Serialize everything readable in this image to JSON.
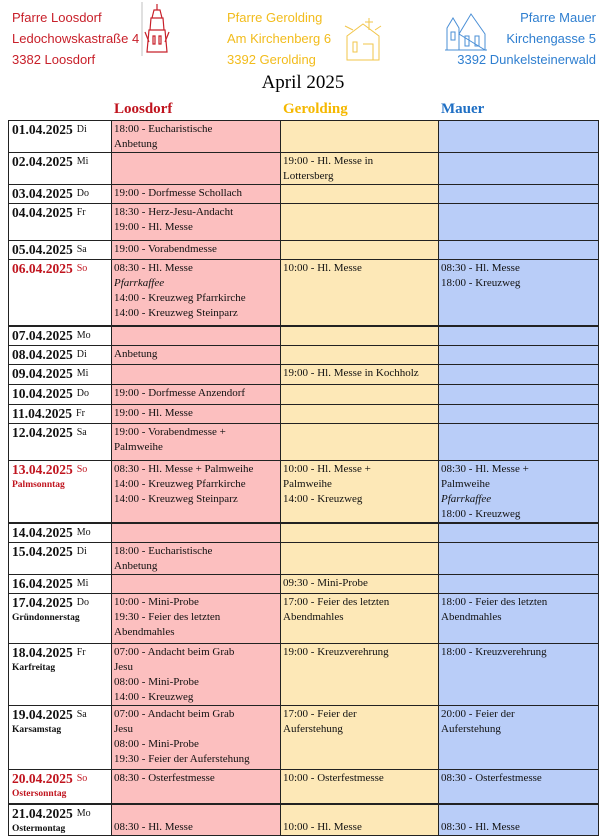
{
  "header": {
    "loosdorf": {
      "lines": [
        "Pfarre Loosdorf",
        "Ledochowskastraße 4",
        "3382 Loosdorf"
      ],
      "color": "#c8202a"
    },
    "gerolding": {
      "lines": [
        "Pfarre Gerolding",
        "Am Kirchenberg 6",
        "3392 Gerolding"
      ],
      "color": "#f2bc1c"
    },
    "mauer": {
      "lines": [
        "Pfarre Mauer",
        "Kirchengasse 5",
        "3392 Dunkelsteinerwald"
      ],
      "color": "#2f7fd0"
    }
  },
  "title": "April 2025",
  "columns": {
    "loosdorf": "Loosdorf",
    "gerolding": "Gerolding",
    "mauer": "Mauer"
  },
  "colors": {
    "loosdorf_bg": "#fcbfbf",
    "gerolding_bg": "#fde8b7",
    "mauer_bg": "#b9cdf8",
    "sunday_red": "#c0141e"
  },
  "rows": [
    {
      "date": "01.04.2025",
      "day": "Di",
      "loosdorf": [
        "18:00 - Eucharistische",
        "Anbetung"
      ],
      "gerolding": [],
      "mauer": []
    },
    {
      "date": "02.04.2025",
      "day": "Mi",
      "loosdorf": [],
      "gerolding": [
        "19:00 - Hl. Messe in",
        "Lottersberg"
      ],
      "mauer": []
    },
    {
      "date": "03.04.2025",
      "day": "Do",
      "loosdorf": [
        "19:00 - Dorfmesse Schollach"
      ],
      "gerolding": [],
      "mauer": []
    },
    {
      "date": "04.04.2025",
      "day": "Fr",
      "loosdorf": [
        "18:30 - Herz-Jesu-Andacht",
        "19:00 - Hl. Messe"
      ],
      "gerolding": [],
      "mauer": []
    },
    {
      "date": "05.04.2025",
      "day": "Sa",
      "loosdorf": [
        "19:00 - Vorabendmesse"
      ],
      "gerolding": [],
      "mauer": []
    },
    {
      "date": "06.04.2025",
      "day": "So",
      "sunday": true,
      "loosdorf": [
        "08:30 - Hl. Messe",
        {
          "text": "Pfarrkaffee",
          "italic": true
        },
        "14:00 - Kreuzweg Pfarrkirche",
        "14:00 - Kreuzweg  Steinparz"
      ],
      "gerolding": [
        "10:00 - Hl. Messe"
      ],
      "mauer": [
        "08:30 - Hl. Messe",
        "18:00 - Kreuzweg"
      ]
    },
    {
      "date": "07.04.2025",
      "day": "Mo",
      "loosdorf": [],
      "gerolding": [],
      "mauer": []
    },
    {
      "date": "08.04.2025",
      "day": "Di",
      "loosdorf": [
        "Anbetung"
      ],
      "gerolding": [],
      "mauer": []
    },
    {
      "date": "09.04.2025",
      "day": "Mi",
      "loosdorf": [],
      "gerolding": [
        "19:00 - Hl. Messe in Kochholz"
      ],
      "mauer": []
    },
    {
      "date": "10.04.2025",
      "day": "Do",
      "loosdorf": [
        "19:00 - Dorfmesse Anzendorf"
      ],
      "gerolding": [],
      "mauer": []
    },
    {
      "date": "11.04.2025",
      "day": "Fr",
      "loosdorf": [
        "19:00 - Hl. Messe"
      ],
      "gerolding": [],
      "mauer": []
    },
    {
      "date": "12.04.2025",
      "day": "Sa",
      "loosdorf": [
        "19:00 - Vorabendmesse +",
        "Palmweihe"
      ],
      "gerolding": [],
      "mauer": []
    },
    {
      "date": "13.04.2025",
      "day": "So",
      "sunday": true,
      "label": "Palmsonntag",
      "loosdorf": [
        "08:30 - Hl. Messe + Palmweihe",
        "14:00 - Kreuzweg Pfarrkirche",
        "14:00 - Kreuzweg  Steinparz"
      ],
      "gerolding": [
        "10:00 - Hl. Messe +",
        "Palmweihe",
        "14:00 - Kreuzweg"
      ],
      "mauer": [
        "08:30 - Hl. Messe +",
        "Palmweihe",
        {
          "text": "Pfarrkaffee",
          "italic": true
        },
        "18:00 - Kreuzweg"
      ]
    },
    {
      "date": "14.04.2025",
      "day": "Mo",
      "loosdorf": [],
      "gerolding": [],
      "mauer": []
    },
    {
      "date": "15.04.2025",
      "day": "Di",
      "loosdorf": [
        "18:00 - Eucharistische",
        "Anbetung"
      ],
      "gerolding": [],
      "mauer": []
    },
    {
      "date": "16.04.2025",
      "day": "Mi",
      "loosdorf": [],
      "gerolding": [
        "09:30 - Mini-Probe"
      ],
      "mauer": []
    },
    {
      "date": "17.04.2025",
      "day": "Do",
      "label": "Gründonnerstag",
      "loosdorf": [
        "10:00 - Mini-Probe",
        "19:30 - Feier des letzten",
        "Abendmahles"
      ],
      "gerolding": [
        "17:00 - Feier des letzten",
        "Abendmahles"
      ],
      "mauer": [
        "18:00 - Feier des letzten",
        "Abendmahles"
      ]
    },
    {
      "date": "18.04.2025",
      "day": "Fr",
      "label": "Karfreitag",
      "loosdorf": [
        "07:00 - Andacht beim Grab",
        "Jesu",
        "08:00 - Mini-Probe",
        "14:00 - Kreuzweg"
      ],
      "gerolding": [
        "19:00 - Kreuzverehrung"
      ],
      "mauer": [
        "18:00 - Kreuzverehrung"
      ]
    },
    {
      "date": "19.04.2025",
      "day": "Sa",
      "label": "Karsamstag",
      "loosdorf": [
        "07:00 - Andacht beim Grab",
        "Jesu",
        "08:00 - Mini-Probe",
        "19:30 - Feier der Auferstehung"
      ],
      "gerolding": [
        "17:00 - Feier der",
        "Auferstehung"
      ],
      "mauer": [
        "20:00 - Feier der",
        "Auferstehung"
      ]
    },
    {
      "date": "20.04.2025",
      "day": "So",
      "sunday": true,
      "label": "Ostersonntag",
      "loosdorf": [
        "08:30 - Osterfestmesse"
      ],
      "gerolding": [
        "10:00 - Osterfestmesse"
      ],
      "mauer": [
        "08:30 - Osterfestmesse"
      ]
    },
    {
      "date": "21.04.2025",
      "day": "Mo",
      "label": "Ostermontag",
      "loosdorf": [
        "08:30 - Hl. Messe"
      ],
      "gerolding": [
        "10:00 - Hl. Messe"
      ],
      "mauer": [
        "08:30 - Hl. Messe"
      ]
    }
  ]
}
